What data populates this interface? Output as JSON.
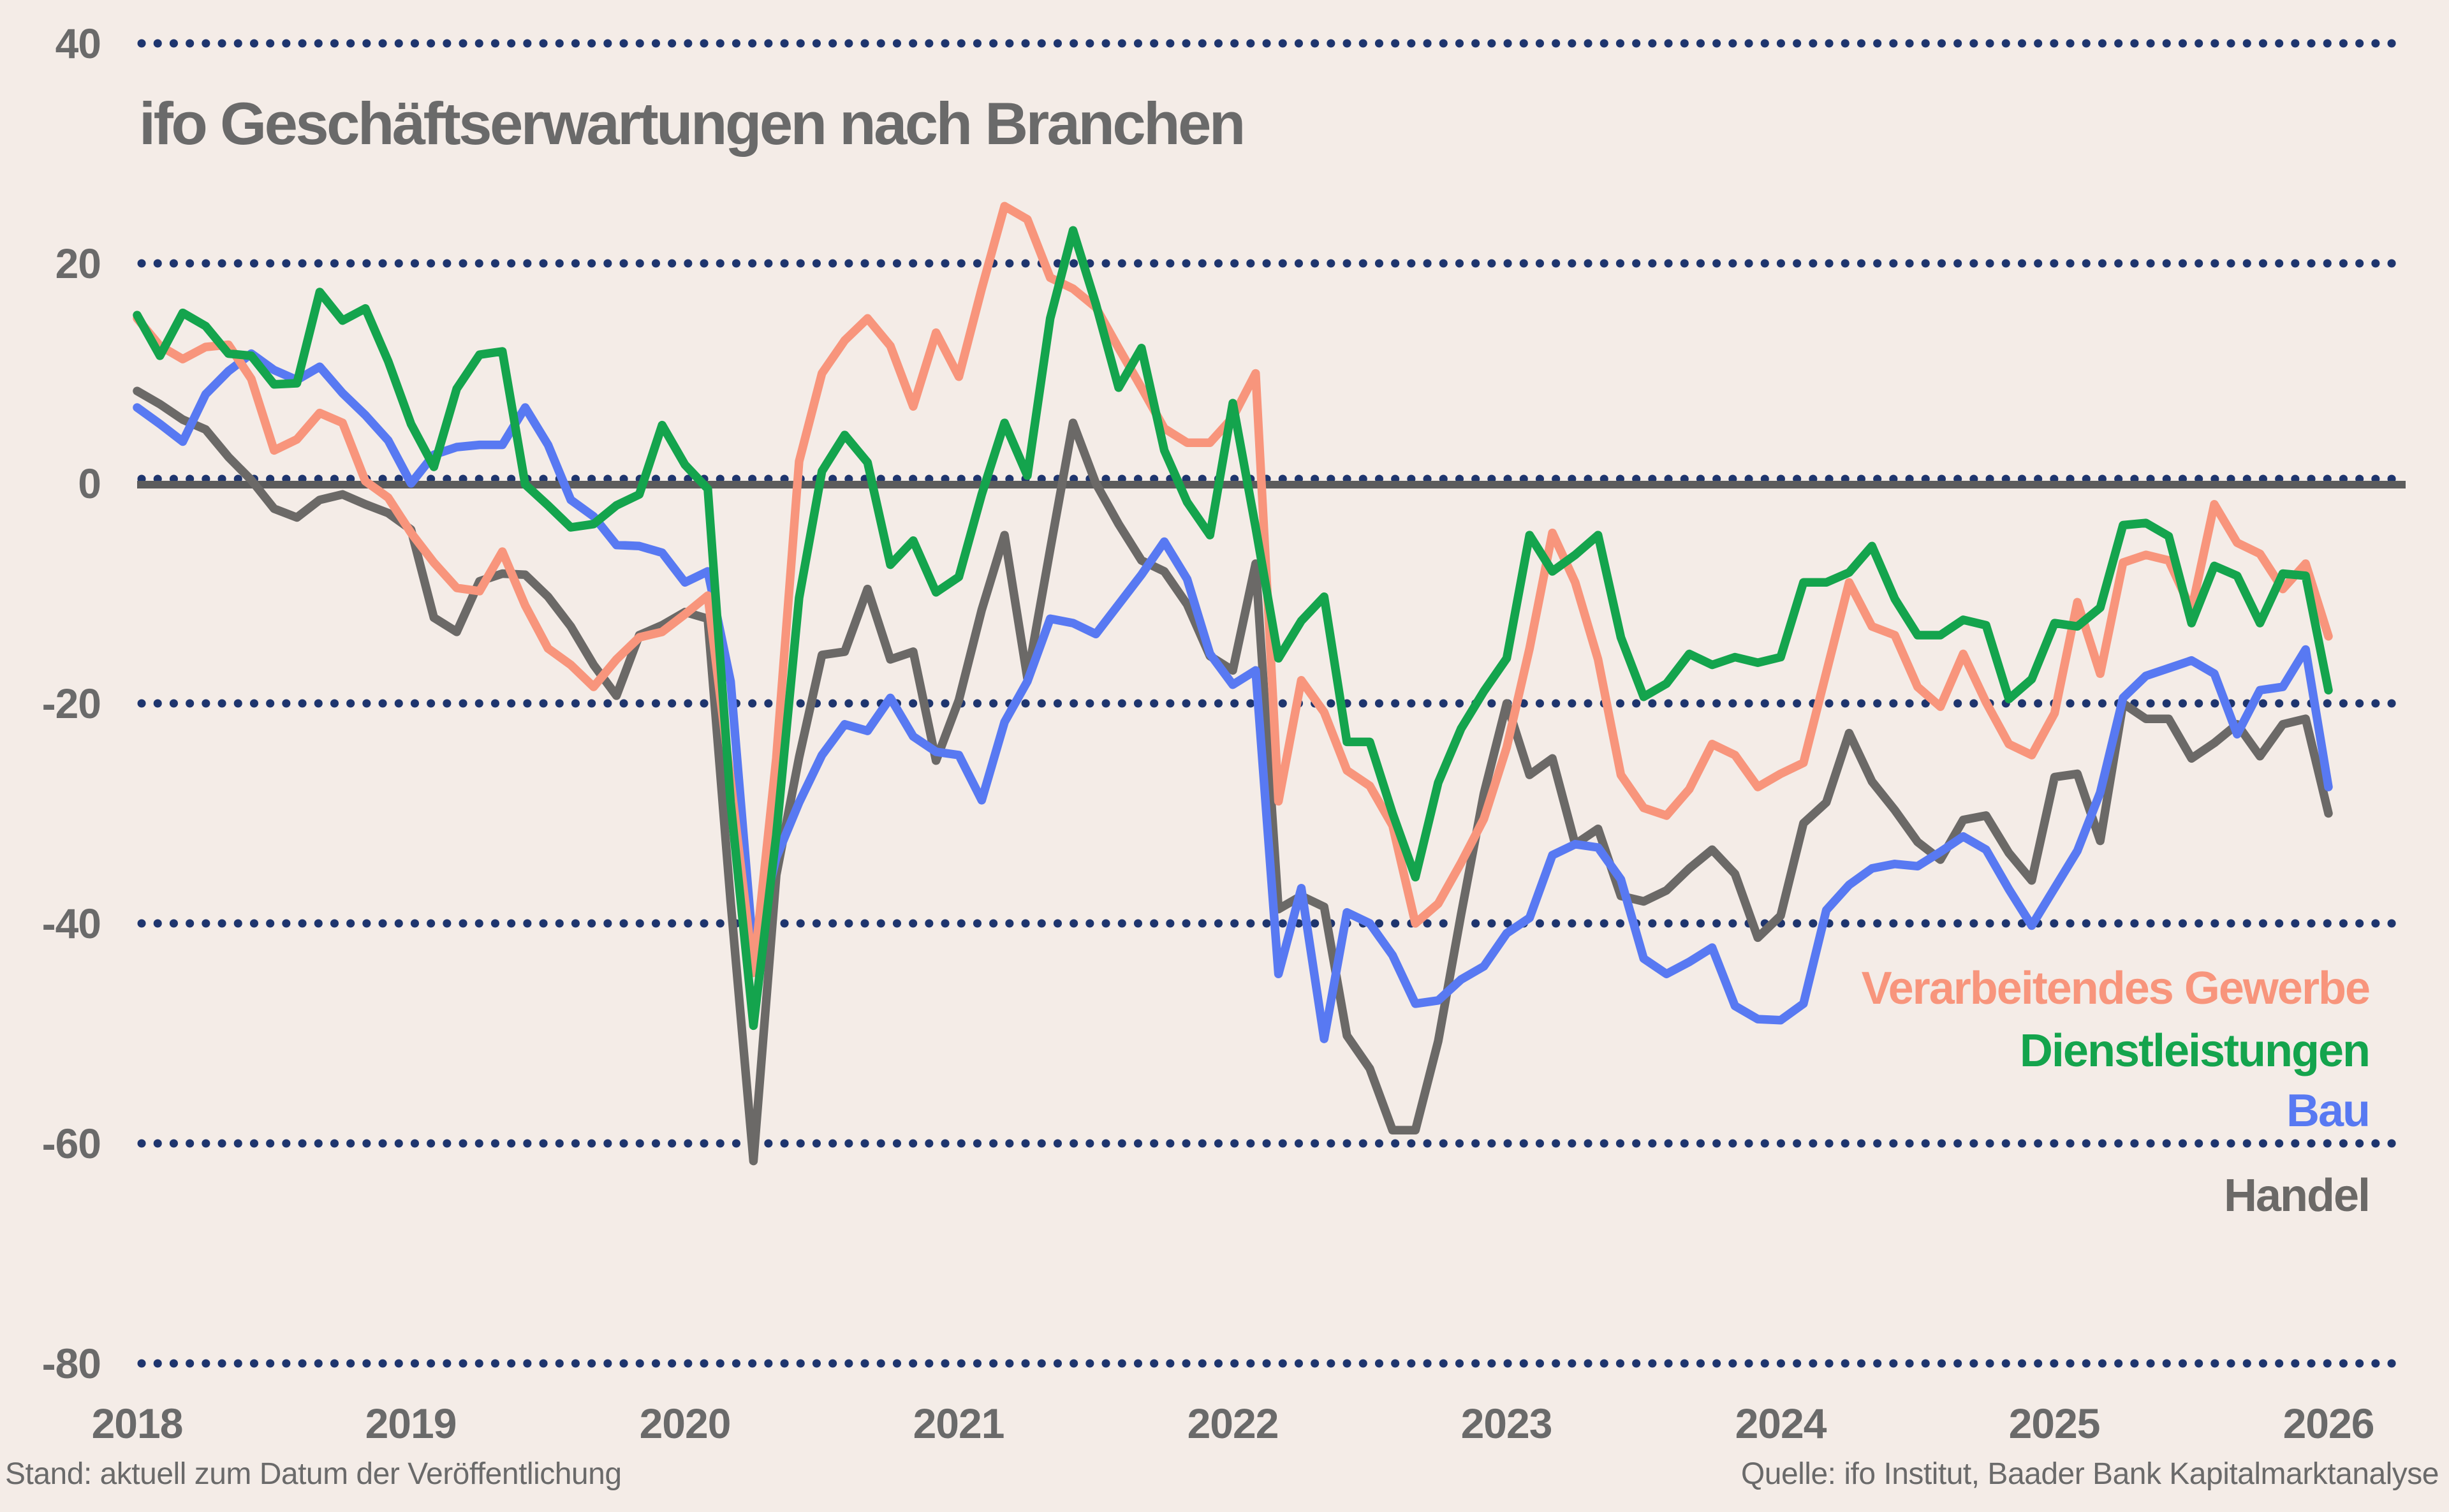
{
  "page": {
    "background": "#f4ece7",
    "grid_dot_color": "#1e356e",
    "zero_line_color": "#5c5c5c"
  },
  "chart_data": {
    "type": "line",
    "title": "ifo Geschäftserwartungen nach Branchen",
    "x_start": "2018-01",
    "x_freq": "monthly",
    "x_tick_labels": [
      "2018",
      "2019",
      "2020",
      "2021",
      "2022",
      "2023",
      "2024",
      "2025",
      "2026"
    ],
    "y_ticks": [
      40,
      20,
      0,
      -20,
      -40,
      -60,
      -80
    ],
    "y_tick_labels": [
      "40",
      "20",
      "0",
      "-20",
      "-40",
      "-60",
      "-80"
    ],
    "ylim": [
      -85,
      42
    ],
    "grid": "horizontal dotted navy lines at each y tick, solid dark line at zero",
    "legend_position": "inside right, stacked, right-aligned",
    "series": [
      {
        "name": "Verarbeitendes Gewerbe",
        "color": "#F8957C",
        "values": [
          15.0,
          12.5,
          11.3,
          12.4,
          12.6,
          9.5,
          3.0,
          4.0,
          6.4,
          5.5,
          0.2,
          -1.3,
          -4.5,
          -7.2,
          -9.5,
          -9.8,
          -6.2,
          -11.1,
          -15.0,
          -16.5,
          -18.5,
          -16.0,
          -14.0,
          -13.5,
          -11.9,
          -10.2,
          -27.0,
          -44.5,
          -25.0,
          2.0,
          10.0,
          13.0,
          15.0,
          12.5,
          7.0,
          13.7,
          9.7,
          17.7,
          25.2,
          24.0,
          18.7,
          17.7,
          16.0,
          12.3,
          8.7,
          5.0,
          3.7,
          3.7,
          6.0,
          10.0,
          -28.9,
          -17.9,
          -20.8,
          -26.1,
          -27.5,
          -31.1,
          -40.0,
          -38.2,
          -34.5,
          -30.5,
          -24.0,
          -15.0,
          -4.5,
          -9.0,
          -16.0,
          -26.5,
          -29.5,
          -30.2,
          -27.8,
          -23.7,
          -24.7,
          -27.6,
          -26.4,
          -25.4,
          -17.2,
          -9.0,
          -13.0,
          -13.8,
          -18.5,
          -20.3,
          -15.5,
          -19.9,
          -23.7,
          -24.7,
          -20.9,
          -10.8,
          -17.3,
          -7.2,
          -6.5,
          -7.0,
          -11.5,
          -1.9,
          -5.4,
          -6.4,
          -9.6,
          -7.3,
          -13.9
        ]
      },
      {
        "name": "Dienstleistungen",
        "color": "#14A44D",
        "values": [
          15.3,
          11.6,
          15.5,
          14.3,
          11.8,
          11.6,
          9.0,
          9.1,
          17.4,
          14.8,
          15.9,
          11.1,
          5.4,
          1.5,
          8.6,
          11.7,
          12.0,
          -0.1,
          -2.0,
          -4.0,
          -3.7,
          -2.0,
          -1.0,
          5.3,
          1.7,
          -0.5,
          -29.0,
          -49.3,
          -32.0,
          -10.4,
          1.1,
          4.4,
          1.9,
          -7.4,
          -5.2,
          -9.9,
          -8.5,
          -1.0,
          5.5,
          0.7,
          15.0,
          23.0,
          16.3,
          8.7,
          12.3,
          3.0,
          -1.7,
          -4.7,
          7.3,
          -4.0,
          -15.9,
          -12.5,
          -10.3,
          -23.5,
          -23.5,
          -30.0,
          -35.8,
          -27.2,
          -22.3,
          -18.9,
          -15.9,
          -4.7,
          -8.0,
          -6.5,
          -4.7,
          -14.0,
          -19.4,
          -18.2,
          -15.5,
          -16.5,
          -15.8,
          -16.3,
          -15.8,
          -9.0,
          -9.0,
          -8.1,
          -5.7,
          -10.5,
          -13.8,
          -13.8,
          -12.4,
          -12.9,
          -19.6,
          -17.8,
          -12.7,
          -13.0,
          -11.3,
          -3.8,
          -3.6,
          -4.8,
          -12.7,
          -7.5,
          -8.4,
          -12.7,
          -8.2,
          -8.4,
          -18.8
        ]
      },
      {
        "name": "Bau",
        "color": "#5879F2",
        "values": [
          6.9,
          5.4,
          3.8,
          8.1,
          10.2,
          11.8,
          10.3,
          9.4,
          10.6,
          8.2,
          6.2,
          3.9,
          0.0,
          2.6,
          3.3,
          3.5,
          3.5,
          6.9,
          3.5,
          -1.5,
          -3.0,
          -5.6,
          -5.7,
          -6.3,
          -9.0,
          -8.0,
          -18.0,
          -42.7,
          -34.0,
          -29.0,
          -24.7,
          -21.9,
          -22.5,
          -19.5,
          -23.0,
          -24.4,
          -24.7,
          -28.8,
          -21.7,
          -18.0,
          -12.3,
          -12.7,
          -13.7,
          -11.0,
          -8.3,
          -5.3,
          -8.7,
          -15.5,
          -18.3,
          -17.0,
          -44.6,
          -36.8,
          -50.5,
          -39.0,
          -40.0,
          -42.9,
          -47.3,
          -47.0,
          -45.1,
          -43.9,
          -40.9,
          -39.5,
          -33.8,
          -32.8,
          -33.1,
          -36.0,
          -43.2,
          -44.6,
          -43.5,
          -42.2,
          -47.5,
          -48.7,
          -48.8,
          -47.3,
          -38.8,
          -36.5,
          -35.0,
          -34.6,
          -34.8,
          -33.5,
          -32.1,
          -33.3,
          -36.9,
          -40.2,
          -36.8,
          -33.4,
          -28.1,
          -19.5,
          -17.5,
          -16.8,
          -16.1,
          -17.3,
          -22.8,
          -18.8,
          -18.5,
          -15.1,
          -27.6
        ]
      },
      {
        "name": "Handel",
        "color": "#6B6967",
        "values": [
          8.4,
          7.2,
          5.8,
          4.9,
          2.4,
          0.3,
          -2.3,
          -3.1,
          -1.5,
          -1.0,
          -1.9,
          -2.7,
          -4.2,
          -12.2,
          -13.5,
          -8.9,
          -8.2,
          -8.3,
          -10.3,
          -13.0,
          -16.5,
          -19.3,
          -13.8,
          -12.9,
          -11.7,
          -12.3,
          -38.0,
          -61.6,
          -35.6,
          -24.9,
          -15.6,
          -15.3,
          -9.6,
          -16.0,
          -15.3,
          -25.2,
          -19.7,
          -11.5,
          -4.7,
          -17.7,
          -6.0,
          5.5,
          0.0,
          -3.7,
          -7.0,
          -8.0,
          -11.0,
          -15.7,
          -17.0,
          -7.3,
          -38.7,
          -37.5,
          -38.5,
          -50.2,
          -53.2,
          -58.8,
          -58.8,
          -50.7,
          -39.2,
          -28.2,
          -20.0,
          -26.5,
          -25.0,
          -32.8,
          -31.4,
          -37.5,
          -38.0,
          -37.0,
          -35.0,
          -33.3,
          -35.5,
          -41.3,
          -39.3,
          -30.9,
          -29.0,
          -22.7,
          -27.1,
          -29.7,
          -32.6,
          -34.2,
          -30.6,
          -30.2,
          -33.6,
          -36.1,
          -26.7,
          -26.4,
          -32.5,
          -20.0,
          -21.4,
          -21.4,
          -25.0,
          -23.6,
          -21.9,
          -24.8,
          -21.9,
          -21.4,
          -30.0
        ]
      }
    ]
  },
  "footer": {
    "stand": "Stand: aktuell zum Datum der Veröffentlichung",
    "quelle": "Quelle: ifo Institut, Baader Bank Kapitalmarktanalyse"
  }
}
